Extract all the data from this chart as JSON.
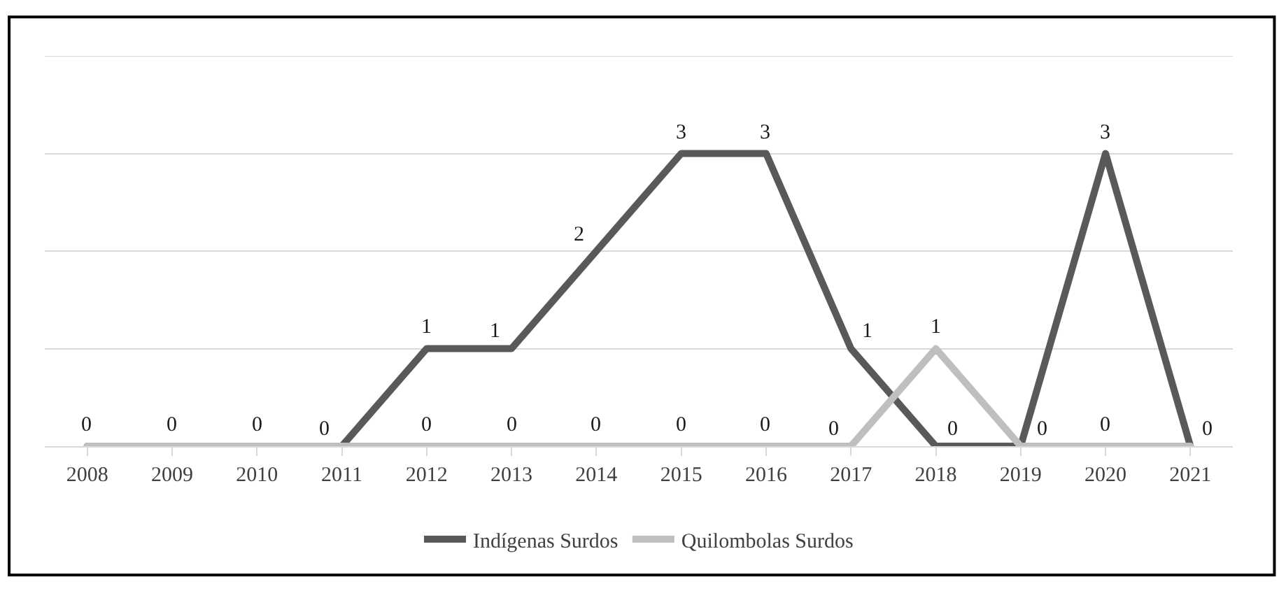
{
  "chart_data": {
    "type": "line",
    "categories": [
      "2008",
      "2009",
      "2010",
      "2011",
      "2012",
      "2013",
      "2014",
      "2015",
      "2016",
      "2017",
      "2018",
      "2019",
      "2020",
      "2021"
    ],
    "series": [
      {
        "name": "Indígenas Surdos",
        "color": "#595959",
        "values": [
          0,
          0,
          0,
          0,
          1,
          1,
          2,
          3,
          3,
          1,
          0,
          0,
          3,
          0
        ],
        "value_labels": [
          "0",
          "0",
          "0",
          "0",
          "1",
          "1",
          "2",
          "3",
          "3",
          "1",
          "0",
          "0",
          "3",
          "0"
        ]
      },
      {
        "name": "Quilombolas Surdos",
        "color": "#bfbfbf",
        "values": [
          0,
          0,
          0,
          0,
          0,
          0,
          0,
          0,
          0,
          0,
          1,
          0,
          0,
          0
        ],
        "value_labels": [
          null,
          null,
          null,
          null,
          "0",
          "0",
          "0",
          "0",
          "0",
          "0",
          "1",
          null,
          "0",
          null
        ]
      }
    ],
    "ylim": [
      0,
      4
    ],
    "yticks": [
      {
        "value": 0,
        "label": null
      },
      {
        "value": 1,
        "label": null
      },
      {
        "value": 2,
        "label": null
      },
      {
        "value": 3,
        "label": null
      },
      {
        "value": 4,
        "label": null
      }
    ],
    "tick_labels": "x",
    "grid": "y",
    "legend": "bottom",
    "marker": "none",
    "line_style": "solid"
  }
}
